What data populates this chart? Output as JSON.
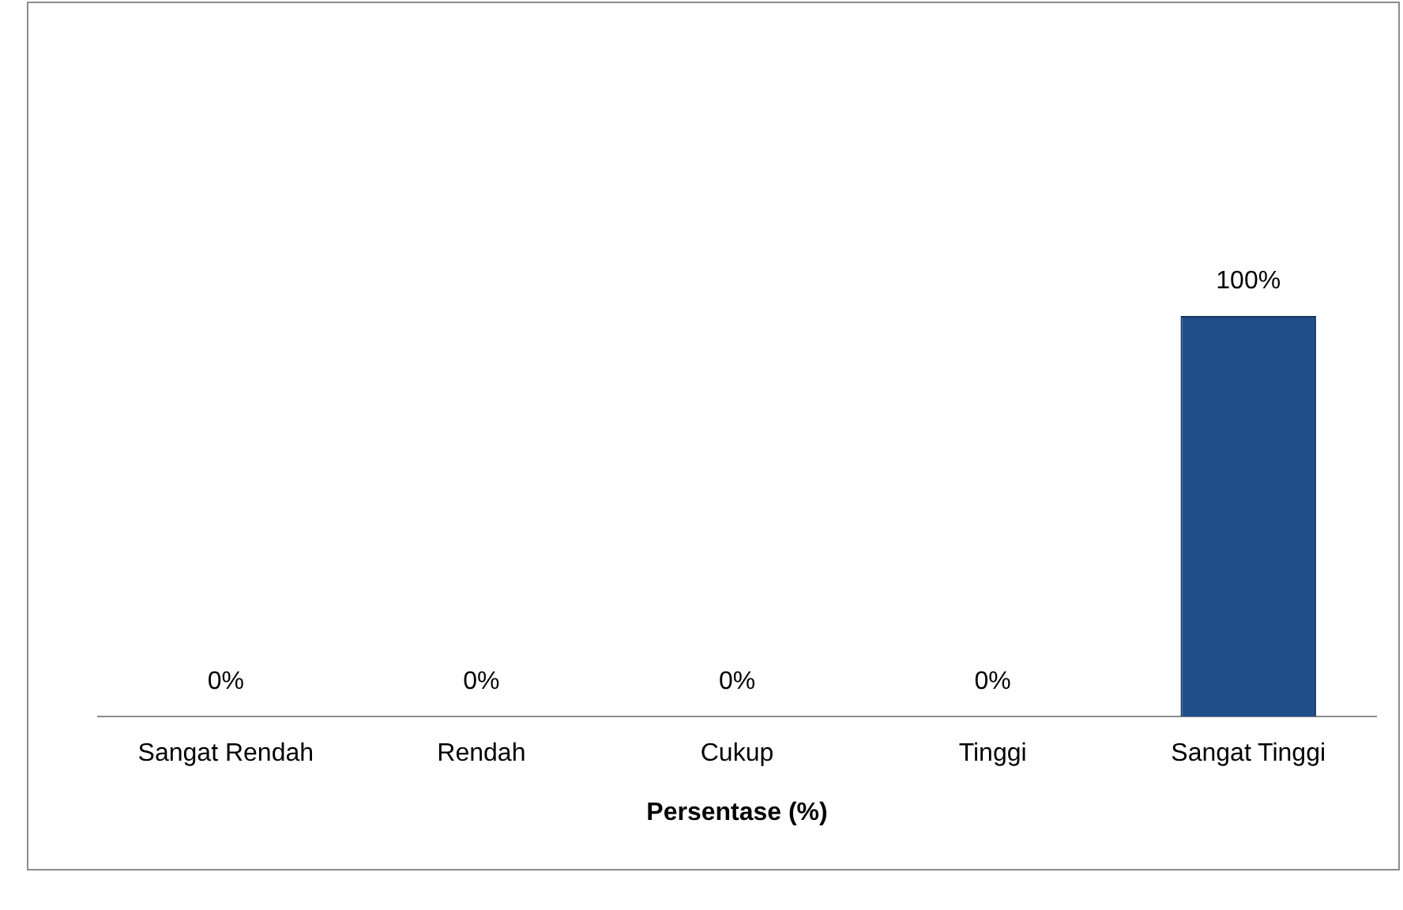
{
  "chart_data": {
    "type": "bar",
    "xlabel": "Persentase (%)",
    "categories": [
      "Sangat Rendah",
      "Rendah",
      "Cukup",
      "Tinggi",
      "Sangat Tinggi"
    ],
    "values": [
      0,
      0,
      0,
      0,
      100
    ],
    "value_labels": [
      "0%",
      "0%",
      "0%",
      "0%",
      "100%"
    ],
    "color": "#1f4e89",
    "grid": false,
    "legend": false
  }
}
